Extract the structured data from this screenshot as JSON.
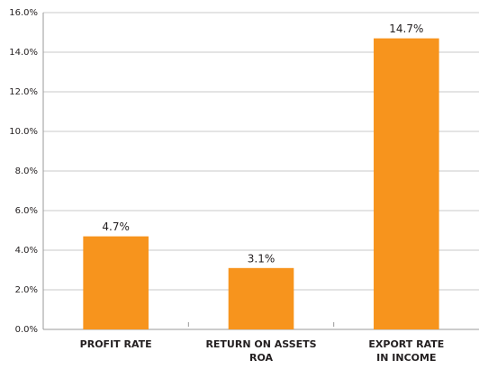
{
  "chart_data": {
    "type": "bar",
    "categories": [
      [
        "PROFIT RATE"
      ],
      [
        "RETURN ON ASSETS",
        "ROA"
      ],
      [
        "EXPORT RATE",
        "IN INCOME"
      ]
    ],
    "values": [
      4.7,
      3.1,
      14.7
    ],
    "value_labels": [
      "4.7%",
      "3.1%",
      "14.7%"
    ],
    "color": "#f7941d",
    "ylim": [
      0,
      16
    ],
    "yticks": [
      {
        "value": 0,
        "label": "0.0%"
      },
      {
        "value": 2,
        "label": "2.0%"
      },
      {
        "value": 4,
        "label": "4.0%"
      },
      {
        "value": 6,
        "label": "6.0%"
      },
      {
        "value": 8,
        "label": "8.0%"
      },
      {
        "value": 10,
        "label": "10.0%"
      },
      {
        "value": 12,
        "label": "12.0%"
      },
      {
        "value": 14,
        "label": "14.0%"
      },
      {
        "value": 16,
        "label": "16.0%"
      }
    ],
    "grid": true
  }
}
